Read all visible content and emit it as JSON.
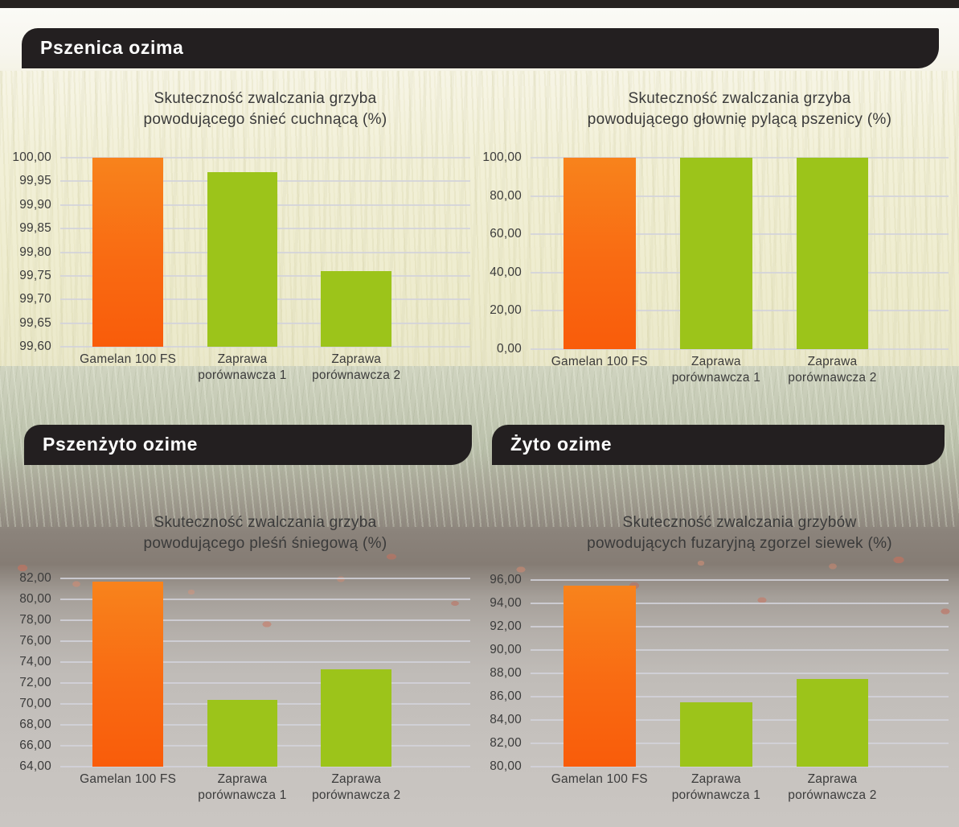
{
  "sections": [
    {
      "banner_label": "Pszenica ozima"
    },
    {
      "banner_label": "Pszenżyto ozime"
    },
    {
      "banner_label": "Żyto ozime"
    }
  ],
  "colors": {
    "accent_orange_top": "#f8831c",
    "accent_orange_bottom": "#f95c0a",
    "accent_green": "#9cc41a",
    "banner_bg": "#231f20",
    "banner_text": "#ffffff",
    "chart_text": "#3b3b3b",
    "gridline": "#d2d2db"
  },
  "chart_data": [
    {
      "type": "bar",
      "section": "Pszenica ozima",
      "title": "Skuteczność zwalczania grzyba\npowodującego śnieć cuchnącą (%)",
      "categories": [
        "Gamelan 100 FS",
        "Zaprawa\nporównawcza 1",
        "Zaprawa\nporównawcza 2"
      ],
      "values": [
        100.0,
        99.97,
        99.76
      ],
      "bar_colors": [
        "orange",
        "green",
        "green"
      ],
      "ylim": [
        99.6,
        100.0
      ],
      "ytick_step": 0.05,
      "ytick_labels": [
        "100,00",
        "99,95",
        "99,90",
        "99,85",
        "99,80",
        "99,75",
        "99,70",
        "99,65",
        "99,60"
      ],
      "xlabel": "",
      "ylabel": "",
      "grid": true,
      "legend": false
    },
    {
      "type": "bar",
      "section": "Pszenica ozima",
      "title": "Skuteczność zwalczania grzyba\npowodującego głownię pylącą pszenicy (%)",
      "categories": [
        "Gamelan 100 FS",
        "Zaprawa\nporównawcza 1",
        "Zaprawa\nporównawcza 2"
      ],
      "values": [
        100.0,
        100.0,
        100.0
      ],
      "bar_colors": [
        "orange",
        "green",
        "green"
      ],
      "ylim": [
        0.0,
        100.0
      ],
      "ytick_step": 20,
      "ytick_labels": [
        "100,00",
        "80,00",
        "60,00",
        "40,00",
        "20,00",
        "0,00"
      ],
      "xlabel": "",
      "ylabel": "",
      "grid": true,
      "legend": false
    },
    {
      "type": "bar",
      "section": "Pszenżyto ozime",
      "title": "Skuteczność zwalczania grzyba\npowodującego pleśń śniegową (%)",
      "categories": [
        "Gamelan 100 FS",
        "Zaprawa\nporównawcza 1",
        "Zaprawa\nporównawcza 2"
      ],
      "values": [
        81.7,
        70.4,
        73.3
      ],
      "bar_colors": [
        "orange",
        "green",
        "green"
      ],
      "ylim": [
        64.0,
        82.0
      ],
      "ytick_step": 2,
      "ytick_labels": [
        "82,00",
        "80,00",
        "78,00",
        "76,00",
        "74,00",
        "72,00",
        "70,00",
        "68,00",
        "66,00",
        "64,00"
      ],
      "xlabel": "",
      "ylabel": "",
      "grid": true,
      "legend": false
    },
    {
      "type": "bar",
      "section": "Żyto ozime",
      "title": "Skuteczność zwalczania grzybów\npowodujących fuzaryjną zgorzel siewek (%)",
      "categories": [
        "Gamelan 100 FS",
        "Zaprawa\nporównawcza 1",
        "Zaprawa\nporównawcza 2"
      ],
      "values": [
        95.5,
        85.5,
        87.5
      ],
      "bar_colors": [
        "orange",
        "green",
        "green"
      ],
      "ylim": [
        80.0,
        96.0
      ],
      "ytick_step": 2,
      "ytick_labels": [
        "96,00",
        "94,00",
        "92,00",
        "90,00",
        "88,00",
        "86,00",
        "84,00",
        "82,00",
        "80,00"
      ],
      "xlabel": "",
      "ylabel": "",
      "grid": true,
      "legend": false
    }
  ]
}
